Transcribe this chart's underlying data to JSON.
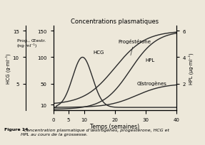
{
  "title": "Concentrations plasmatiques",
  "xlabel": "Temps (semaines)",
  "ylabel_hcg": "HCG (g·ml⁻¹)",
  "ylabel_prog": "Prog., Œestr.\n(ng·ml⁻¹)",
  "ylabel_hpl": "HPL (µg·ml⁻¹)",
  "figcaption_bold": "Figure 14.",
  "figcaption_italic": "  Concentration plasmatique d’œstrogènes, progestérone, HCG et\nHPL au cours de la grossesse.",
  "xlim": [
    0,
    40
  ],
  "ylim_hcg": [
    0,
    16
  ],
  "ylim_prog": [
    0,
    160
  ],
  "ylim_hpl": [
    0,
    6.4
  ],
  "xticks": [
    0,
    5,
    10,
    20,
    30,
    40
  ],
  "yticks_hcg": [
    5,
    10,
    15
  ],
  "yticks_prog": [
    10,
    50,
    100,
    150
  ],
  "yticks_hpl": [
    2,
    4,
    6
  ],
  "background_color": "#ede8da",
  "line_color": "#2a2a2a",
  "label_hcg": "HCG",
  "label_prog": "Progéstérone",
  "label_hpl": "HPL",
  "label_oestr": "Œstrogènes"
}
